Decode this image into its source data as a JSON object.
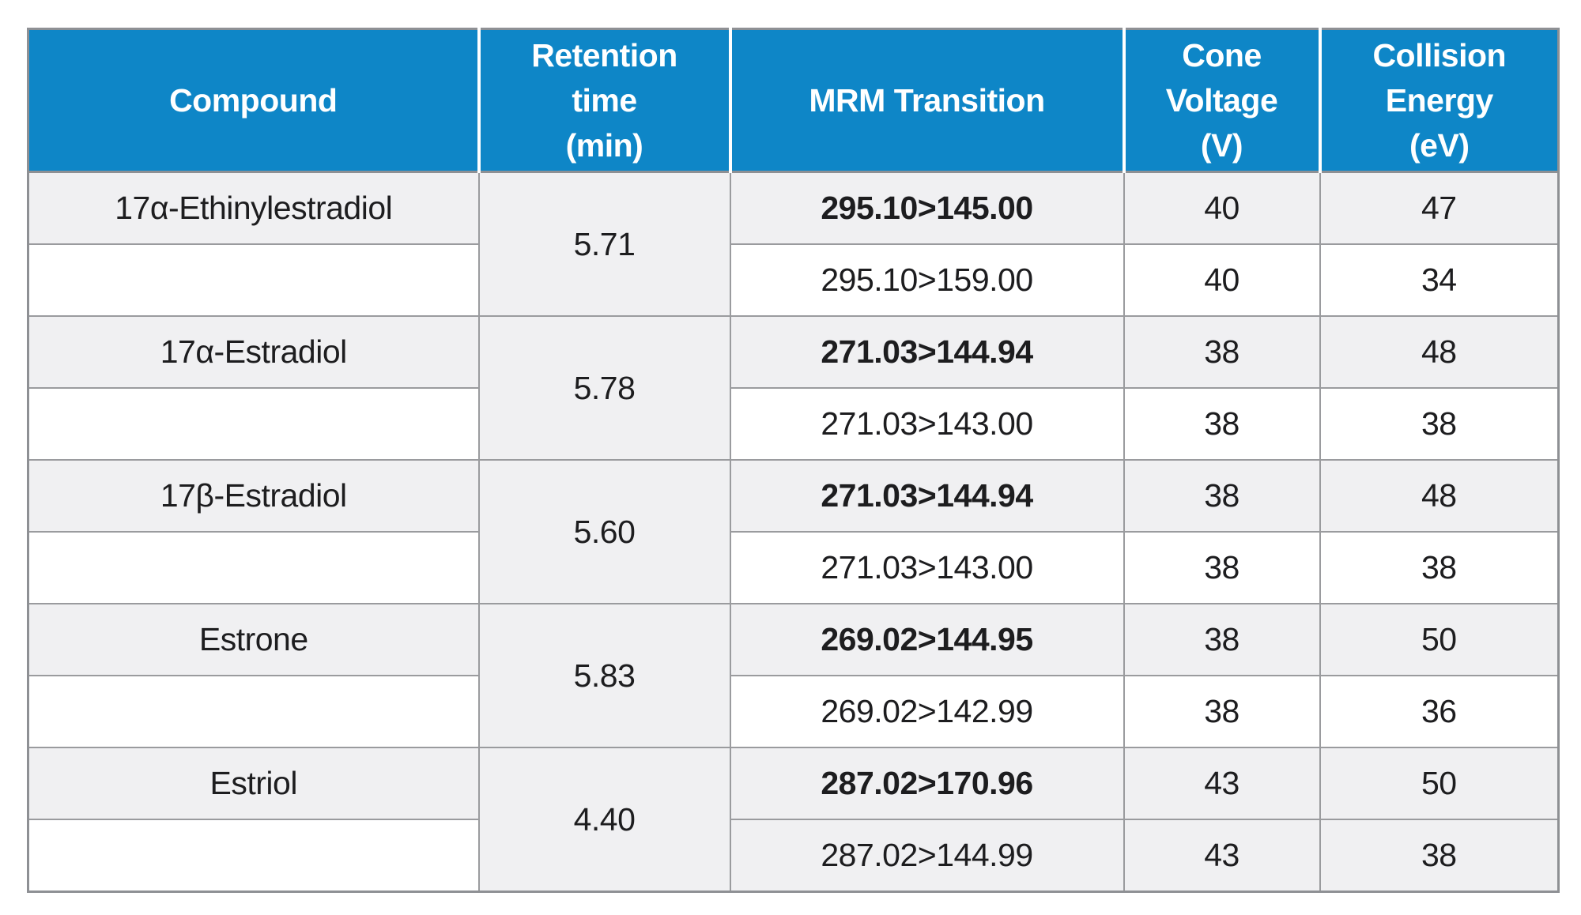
{
  "table": {
    "columns": {
      "compound": "Compound",
      "retention": "Retention\ntime\n(min)",
      "mrm": "MRM Transition",
      "cone": "Cone\nVoltage\n(V)",
      "ce": "Collision\nEnergy\n(eV)"
    },
    "groups": [
      {
        "compound": "17α-Ethinylestradiol",
        "retention": "5.71",
        "transitions": [
          {
            "mrm": "295.10>145.00",
            "cone": "40",
            "ce": "47",
            "bold": true
          },
          {
            "mrm": "295.10>159.00",
            "cone": "40",
            "ce": "34",
            "bold": false
          }
        ]
      },
      {
        "compound": "17α-Estradiol",
        "retention": "5.78",
        "transitions": [
          {
            "mrm": "271.03>144.94",
            "cone": "38",
            "ce": "48",
            "bold": true
          },
          {
            "mrm": "271.03>143.00",
            "cone": "38",
            "ce": "38",
            "bold": false
          }
        ]
      },
      {
        "compound": "17β-Estradiol",
        "retention": "5.60",
        "transitions": [
          {
            "mrm": "271.03>144.94",
            "cone": "38",
            "ce": "48",
            "bold": true
          },
          {
            "mrm": "271.03>143.00",
            "cone": "38",
            "ce": "38",
            "bold": false
          }
        ]
      },
      {
        "compound": "Estrone",
        "retention": "5.83",
        "transitions": [
          {
            "mrm": "269.02>144.95",
            "cone": "38",
            "ce": "50",
            "bold": true
          },
          {
            "mrm": "269.02>142.99",
            "cone": "38",
            "ce": "36",
            "bold": false
          }
        ]
      },
      {
        "compound": "Estriol",
        "retention": "4.40",
        "transitions": [
          {
            "mrm": "287.02>170.96",
            "cone": "43",
            "ce": "50",
            "bold": true
          },
          {
            "mrm": "287.02>144.99",
            "cone": "43",
            "ce": "38",
            "bold": false
          }
        ]
      }
    ],
    "colors": {
      "header_bg": "#0e86c7",
      "header_text": "#ffffff",
      "shaded_row_bg": "#f0f0f2",
      "border": "#9a9b9e",
      "outer_border": "#8e9094"
    }
  }
}
